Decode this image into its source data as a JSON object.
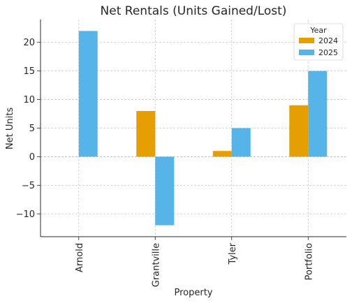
{
  "chart_data": {
    "type": "bar",
    "title": "Net Rentals (Units Gained/Lost)",
    "xlabel": "Property",
    "ylabel": "Net Units",
    "categories": [
      "Arnold",
      "Grantville",
      "Tyler",
      "Portfolio"
    ],
    "series": [
      {
        "name": "2024",
        "values": [
          0,
          8,
          1,
          9
        ],
        "color": "#E69F00"
      },
      {
        "name": "2025",
        "values": [
          22,
          -12,
          5,
          15
        ],
        "color": "#56B4E9"
      }
    ],
    "ylim": [
      -14,
      24
    ],
    "yticks": [
      -10,
      -5,
      0,
      5,
      10,
      15,
      20
    ],
    "ytick_labels": [
      "−10",
      "−5",
      "0",
      "5",
      "10",
      "15",
      "20"
    ],
    "grid": true,
    "legend": {
      "title": "Year",
      "position": "top-right"
    }
  }
}
